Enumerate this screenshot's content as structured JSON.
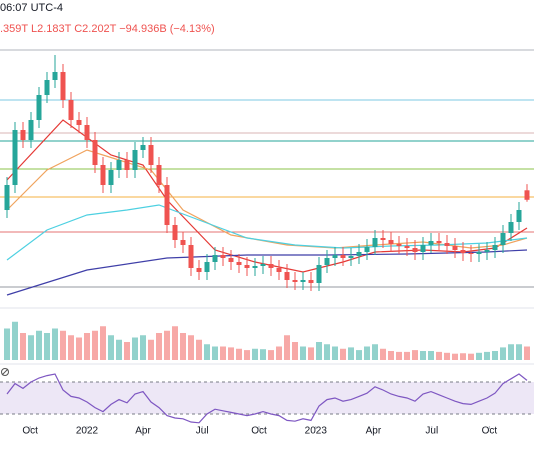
{
  "header": {
    "time": "06:07 UTC-4",
    "quote": ".359T  L2.183T  C2.202T  −94.936B (−4.13%)"
  },
  "chart_data": {
    "type": "candlestick",
    "up_color": "#26a69a",
    "down_color": "#ef5350",
    "xlim": [
      -0.5,
      65.5
    ],
    "xticks": [
      {
        "value": 2.9,
        "label": "Oct"
      },
      {
        "value": 10,
        "label": "2022"
      },
      {
        "value": 17,
        "label": "Apr"
      },
      {
        "value": 24.4,
        "label": "Jul"
      },
      {
        "value": 31.5,
        "label": "Oct"
      },
      {
        "value": 38.6,
        "label": "2023"
      },
      {
        "value": 45.8,
        "label": "Apr"
      },
      {
        "value": 53.1,
        "label": "Jul"
      },
      {
        "value": 60.3,
        "label": "Oct"
      }
    ],
    "ylim": [
      1.2,
      3.8
    ],
    "open": [
      2.1,
      2.35,
      2.9,
      2.8,
      3.0,
      3.25,
      3.4,
      3.48,
      3.2,
      3.0,
      2.95,
      2.8,
      2.55,
      2.35,
      2.5,
      2.6,
      2.5,
      2.7,
      2.75,
      2.55,
      2.35,
      1.95,
      1.8,
      1.75,
      1.52,
      1.48,
      1.58,
      1.65,
      1.62,
      1.58,
      1.55,
      1.52,
      1.54,
      1.56,
      1.52,
      1.48,
      1.4,
      1.38,
      1.4,
      1.37,
      1.55,
      1.62,
      1.65,
      1.62,
      1.64,
      1.68,
      1.73,
      1.82,
      1.8,
      1.76,
      1.74,
      1.72,
      1.68,
      1.75,
      1.79,
      1.77,
      1.74,
      1.7,
      1.67,
      1.66,
      1.68,
      1.7,
      1.75,
      1.87,
      1.98,
      2.297
    ],
    "high": [
      2.43,
      2.98,
      2.98,
      3.08,
      3.33,
      3.48,
      3.65,
      3.56,
      3.28,
      3.08,
      3.03,
      2.88,
      2.63,
      2.58,
      2.68,
      2.68,
      2.78,
      2.83,
      2.83,
      2.63,
      2.43,
      2.03,
      1.88,
      1.83,
      1.6,
      1.66,
      1.73,
      1.73,
      1.7,
      1.66,
      1.63,
      1.62,
      1.64,
      1.64,
      1.6,
      1.56,
      1.48,
      1.48,
      1.48,
      1.63,
      1.7,
      1.73,
      1.73,
      1.72,
      1.76,
      1.81,
      1.9,
      1.9,
      1.88,
      1.84,
      1.82,
      1.8,
      1.83,
      1.87,
      1.87,
      1.85,
      1.82,
      1.78,
      1.75,
      1.76,
      1.78,
      1.83,
      1.95,
      2.06,
      2.18,
      2.359
    ],
    "low": [
      2.02,
      2.27,
      2.72,
      2.72,
      2.92,
      3.17,
      3.32,
      3.12,
      2.92,
      2.87,
      2.72,
      2.47,
      2.27,
      2.27,
      2.42,
      2.42,
      2.42,
      2.62,
      2.47,
      2.27,
      1.87,
      1.72,
      1.67,
      1.44,
      1.4,
      1.4,
      1.5,
      1.54,
      1.5,
      1.47,
      1.44,
      1.44,
      1.46,
      1.44,
      1.4,
      1.32,
      1.3,
      1.3,
      1.29,
      1.29,
      1.47,
      1.54,
      1.54,
      1.54,
      1.56,
      1.6,
      1.65,
      1.72,
      1.68,
      1.66,
      1.64,
      1.6,
      1.6,
      1.67,
      1.69,
      1.66,
      1.62,
      1.59,
      1.58,
      1.58,
      1.6,
      1.62,
      1.67,
      1.79,
      1.9,
      2.183
    ],
    "close": [
      2.35,
      2.9,
      2.8,
      3.0,
      3.25,
      3.4,
      3.48,
      3.2,
      3.0,
      2.95,
      2.8,
      2.55,
      2.35,
      2.5,
      2.6,
      2.5,
      2.7,
      2.75,
      2.55,
      2.35,
      1.95,
      1.8,
      1.75,
      1.52,
      1.48,
      1.58,
      1.65,
      1.62,
      1.58,
      1.55,
      1.52,
      1.54,
      1.56,
      1.52,
      1.48,
      1.4,
      1.38,
      1.4,
      1.37,
      1.55,
      1.62,
      1.65,
      1.62,
      1.64,
      1.68,
      1.73,
      1.82,
      1.8,
      1.76,
      1.74,
      1.72,
      1.68,
      1.75,
      1.79,
      1.77,
      1.74,
      1.7,
      1.67,
      1.66,
      1.68,
      1.7,
      1.75,
      1.87,
      1.98,
      2.1,
      2.202
    ],
    "levels": [
      {
        "value": 3.7,
        "color": "#b2b5be"
      },
      {
        "value": 3.2,
        "color": "#7ec8e3"
      },
      {
        "value": 2.87,
        "color": "#d8b4b6"
      },
      {
        "value": 2.79,
        "color": "#26a69a"
      },
      {
        "value": 2.51,
        "color": "#8bc34a"
      },
      {
        "value": 2.23,
        "color": "#f5b041"
      },
      {
        "value": 1.88,
        "color": "#e57373"
      },
      {
        "value": 1.33,
        "color": "#9598a1"
      }
    ],
    "moving_averages": [
      {
        "color": "#e53935",
        "x": [
          0,
          7,
          13,
          17,
          20,
          26,
          31,
          37,
          42,
          46,
          52,
          57,
          61,
          65
        ],
        "values": [
          2.4,
          3.0,
          2.65,
          2.55,
          2.2,
          1.7,
          1.58,
          1.48,
          1.58,
          1.68,
          1.7,
          1.68,
          1.72,
          1.92
        ]
      },
      {
        "color": "#f0a35e",
        "x": [
          0,
          5,
          10,
          18,
          22,
          28,
          35,
          41,
          46,
          52,
          58,
          62,
          65
        ],
        "values": [
          2.1,
          2.5,
          2.7,
          2.5,
          2.1,
          1.85,
          1.75,
          1.72,
          1.75,
          1.78,
          1.72,
          1.75,
          1.82
        ]
      },
      {
        "color": "#4dd0e1",
        "x": [
          0,
          5,
          10,
          15,
          19,
          24,
          30,
          36,
          42,
          48,
          54,
          60,
          65
        ],
        "values": [
          1.6,
          1.9,
          2.05,
          2.1,
          2.15,
          2.0,
          1.82,
          1.75,
          1.72,
          1.74,
          1.75,
          1.77,
          1.82
        ]
      },
      {
        "color": "#3f3fa8",
        "x": [
          0,
          10,
          20,
          30,
          40,
          50,
          60,
          65
        ],
        "values": [
          1.25,
          1.5,
          1.62,
          1.65,
          1.65,
          1.66,
          1.68,
          1.7
        ]
      }
    ],
    "volume": {
      "ylim": [
        0,
        100
      ],
      "values": [
        70,
        85,
        60,
        55,
        65,
        60,
        70,
        65,
        55,
        50,
        60,
        65,
        75,
        55,
        45,
        40,
        50,
        55,
        45,
        60,
        65,
        75,
        60,
        55,
        45,
        35,
        30,
        30,
        28,
        25,
        22,
        25,
        24,
        22,
        30,
        55,
        40,
        30,
        28,
        40,
        35,
        30,
        25,
        28,
        22,
        30,
        35,
        25,
        20,
        18,
        18,
        22,
        20,
        20,
        18,
        16,
        14,
        15,
        14,
        16,
        18,
        20,
        28,
        35,
        35,
        30
      ]
    },
    "rsi": {
      "ylim": [
        15,
        85
      ],
      "levels": [
        30,
        70
      ],
      "color": "#7e57c2",
      "band_color": "#ede7f6",
      "values": [
        55,
        68,
        62,
        70,
        75,
        78,
        80,
        60,
        52,
        50,
        45,
        38,
        33,
        42,
        48,
        44,
        55,
        58,
        45,
        38,
        28,
        25,
        24,
        20,
        19,
        30,
        36,
        34,
        32,
        30,
        28,
        30,
        33,
        30,
        28,
        22,
        21,
        24,
        22,
        40,
        48,
        50,
        46,
        48,
        52,
        56,
        64,
        60,
        55,
        52,
        50,
        46,
        55,
        58,
        54,
        50,
        46,
        43,
        42,
        46,
        50,
        56,
        68,
        74,
        80,
        72
      ]
    }
  }
}
